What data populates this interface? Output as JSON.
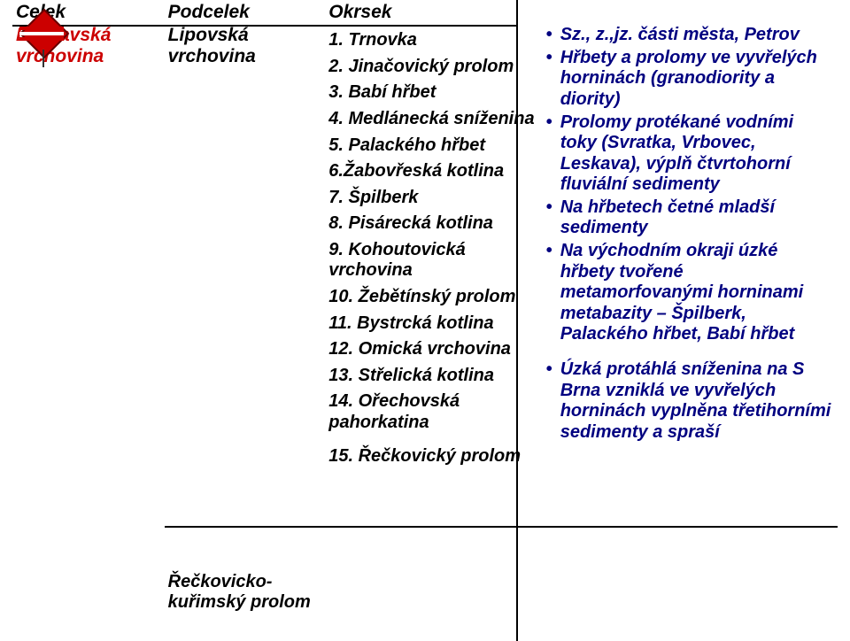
{
  "colors": {
    "text_black": "#000000",
    "text_red": "#cc0000",
    "text_navy": "#000080",
    "border": "#000000",
    "background": "#ffffff",
    "marker_red": "#cc0000",
    "marker_dark": "#660000"
  },
  "typography": {
    "family": "Verdana",
    "size_pt": 16,
    "weight": 700,
    "style": "italic"
  },
  "headers": {
    "celek": "Celek",
    "podcelek": "Podcelek",
    "okrsek": "Okrsek"
  },
  "celek": {
    "title": "Bobravská vrchovina"
  },
  "podcelky": [
    {
      "title": "Lipovská vrchovina",
      "okrsky": [
        "1. Trnovka",
        "2. Jinačovický prolom",
        "3. Babí hřbet",
        "4. Medlánecká sníženina",
        "5. Palackého hřbet",
        "6.Žabovřeská kotlina",
        "7. Špilberk",
        "8. Pisárecká kotlina",
        "9. Kohoutovická vrchovina",
        "10. Žebětínský prolom",
        "11. Bystrcká kotlina",
        "12. Omická vrchovina",
        "13. Střelická kotlina",
        "14. Ořechovská pahorkatina"
      ],
      "desc": [
        "Sz., z.,jz. části města, Petrov",
        "Hřbety a prolomy ve vyvřelých horninách (granodiority a diority)",
        "Prolomy protékané vodními toky (Svratka, Vrbovec, Leskava), výplň čtvrtohorní fluviální sedimenty",
        "Na hřbetech četné mladší sedimenty",
        "Na východním okraji úzké hřbety tvořené metamorfovanými horninami metabazity – Špilberk, Palackého hřbet, Babí hřbet"
      ]
    },
    {
      "title": "Řečkovicko-kuřimský prolom",
      "okrsky": [
        "15. Řečkovický prolom"
      ],
      "desc": [
        "Úzká protáhlá sníženina na S Brna vzniklá ve vyvřelých horninách vyplněna třetihorními sedimenty a spraší"
      ]
    }
  ]
}
